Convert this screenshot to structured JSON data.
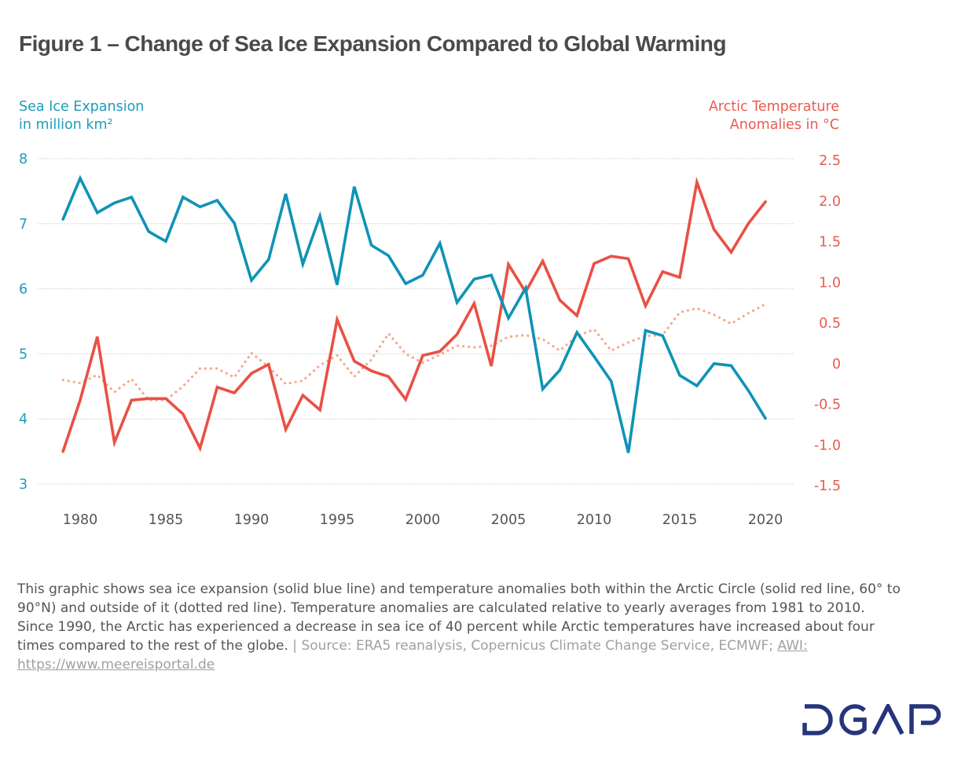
{
  "title": "Figure 1 – Change of Sea Ice Expansion Compared to Global Warming",
  "axis_titles": {
    "left_line1": "Sea Ice Expansion",
    "left_line2": "in million km²",
    "right_line1": "Arctic Temperature",
    "right_line2": "Anomalies in °C"
  },
  "colors": {
    "sea_ice": "#0f93b5",
    "arctic_temp": "#ea5044",
    "global_temp": "#f4a98f",
    "left_axis_text": "#1e9cbb",
    "right_axis_text": "#ea5b4f",
    "logo": "#27347d"
  },
  "caption": {
    "body": "This graphic shows sea ice expansion (solid blue line) and temperature anomalies both within the Arctic Circle (solid red line, 60° to 90°N) and outside of it (dotted red line). Temperature anomalies are calculated relative to yearly averages from 1981 to 2010. Since 1990, the Arctic has experienced a decrease in sea ice of 40 percent while Arctic temperatures have increased about four times compared to the rest of the globe.",
    "separator": " | ",
    "source": "Source: ERA5 reanalysis, Copernicus Climate Change Service, ECMWF; ",
    "source_link": "AWI: https://www.meereisportal.de"
  },
  "logo": {
    "text": "DGAP"
  },
  "chart_data": {
    "type": "line",
    "title": "Figure 1 – Change of Sea Ice Expansion Compared to Global Warming",
    "xlabel": "",
    "ylabel_left": "Sea Ice Expansion in million km²",
    "ylabel_right": "Arctic Temperature Anomalies in °C",
    "x": [
      1979,
      1980,
      1981,
      1982,
      1983,
      1984,
      1985,
      1986,
      1987,
      1988,
      1989,
      1990,
      1991,
      1992,
      1993,
      1994,
      1995,
      1996,
      1997,
      1998,
      1999,
      2000,
      2001,
      2002,
      2003,
      2004,
      2005,
      2006,
      2007,
      2008,
      2009,
      2010,
      2011,
      2012,
      2013,
      2014,
      2015,
      2016,
      2017,
      2018,
      2019,
      2020
    ],
    "x_ticks": [
      "1980",
      "1985",
      "1990",
      "1995",
      "2000",
      "2005",
      "2010",
      "2015",
      "2020"
    ],
    "x_tick_values": [
      1980,
      1985,
      1990,
      1995,
      2000,
      2005,
      2010,
      2015,
      2020
    ],
    "xlim": [
      1979,
      2020
    ],
    "ylim_left": [
      3,
      8
    ],
    "y_ticks_left": [
      "8",
      "7",
      "6",
      "5",
      "4",
      "3"
    ],
    "y_tick_values_left": [
      8,
      7,
      6,
      5,
      4,
      3
    ],
    "ylim_right": [
      -1.5,
      2.5
    ],
    "y_ticks_right": [
      "2.5",
      "2.0",
      "1.5",
      "1.0",
      "0.5",
      "0",
      "-0.5",
      "-1.0",
      "-1.5"
    ],
    "y_tick_values_right": [
      2.5,
      2.0,
      1.5,
      1.0,
      0.5,
      0,
      -0.5,
      -1.0,
      -1.5
    ],
    "grid": "horizontal-dotted",
    "legend": "none",
    "series": [
      {
        "name": "Sea Ice Expansion (solid blue line)",
        "axis": "left",
        "style": "solid",
        "values": [
          7.07,
          7.7,
          7.17,
          7.32,
          7.41,
          6.88,
          6.73,
          7.41,
          7.26,
          7.36,
          7.01,
          6.13,
          6.45,
          7.46,
          6.38,
          7.12,
          6.06,
          7.57,
          6.67,
          6.51,
          6.08,
          6.21,
          6.7,
          5.79,
          6.15,
          6.21,
          5.55,
          6.01,
          4.46,
          4.75,
          5.33,
          4.96,
          4.58,
          3.48,
          5.36,
          5.28,
          4.67,
          4.51,
          4.85,
          4.82,
          4.44,
          4.01
        ]
      },
      {
        "name": "Arctic Temperature Anomaly 60°–90°N (solid red line)",
        "axis": "right",
        "style": "solid",
        "values": [
          -1.08,
          -0.45,
          0.33,
          -0.97,
          -0.45,
          -0.43,
          -0.43,
          -0.62,
          -1.04,
          -0.29,
          -0.36,
          -0.12,
          -0.01,
          -0.81,
          -0.39,
          -0.57,
          0.54,
          0.03,
          -0.09,
          -0.16,
          -0.44,
          0.1,
          0.15,
          0.36,
          0.74,
          -0.03,
          1.22,
          0.88,
          1.26,
          0.78,
          0.59,
          1.23,
          1.32,
          1.29,
          0.71,
          1.13,
          1.06,
          2.23,
          1.65,
          1.37,
          1.72,
          1.99
        ]
      },
      {
        "name": "Temperature Anomaly outside Arctic Circle (dotted red line)",
        "axis": "right",
        "style": "dotted",
        "values": [
          -0.2,
          -0.24,
          -0.14,
          -0.35,
          -0.19,
          -0.45,
          -0.45,
          -0.28,
          -0.06,
          -0.06,
          -0.17,
          0.13,
          -0.04,
          -0.25,
          -0.21,
          -0.02,
          0.1,
          -0.16,
          0.05,
          0.37,
          0.12,
          0.01,
          0.11,
          0.22,
          0.2,
          0.22,
          0.33,
          0.35,
          0.3,
          0.16,
          0.34,
          0.42,
          0.16,
          0.26,
          0.34,
          0.35,
          0.63,
          0.68,
          0.6,
          0.49,
          0.62,
          0.73
        ]
      }
    ]
  }
}
